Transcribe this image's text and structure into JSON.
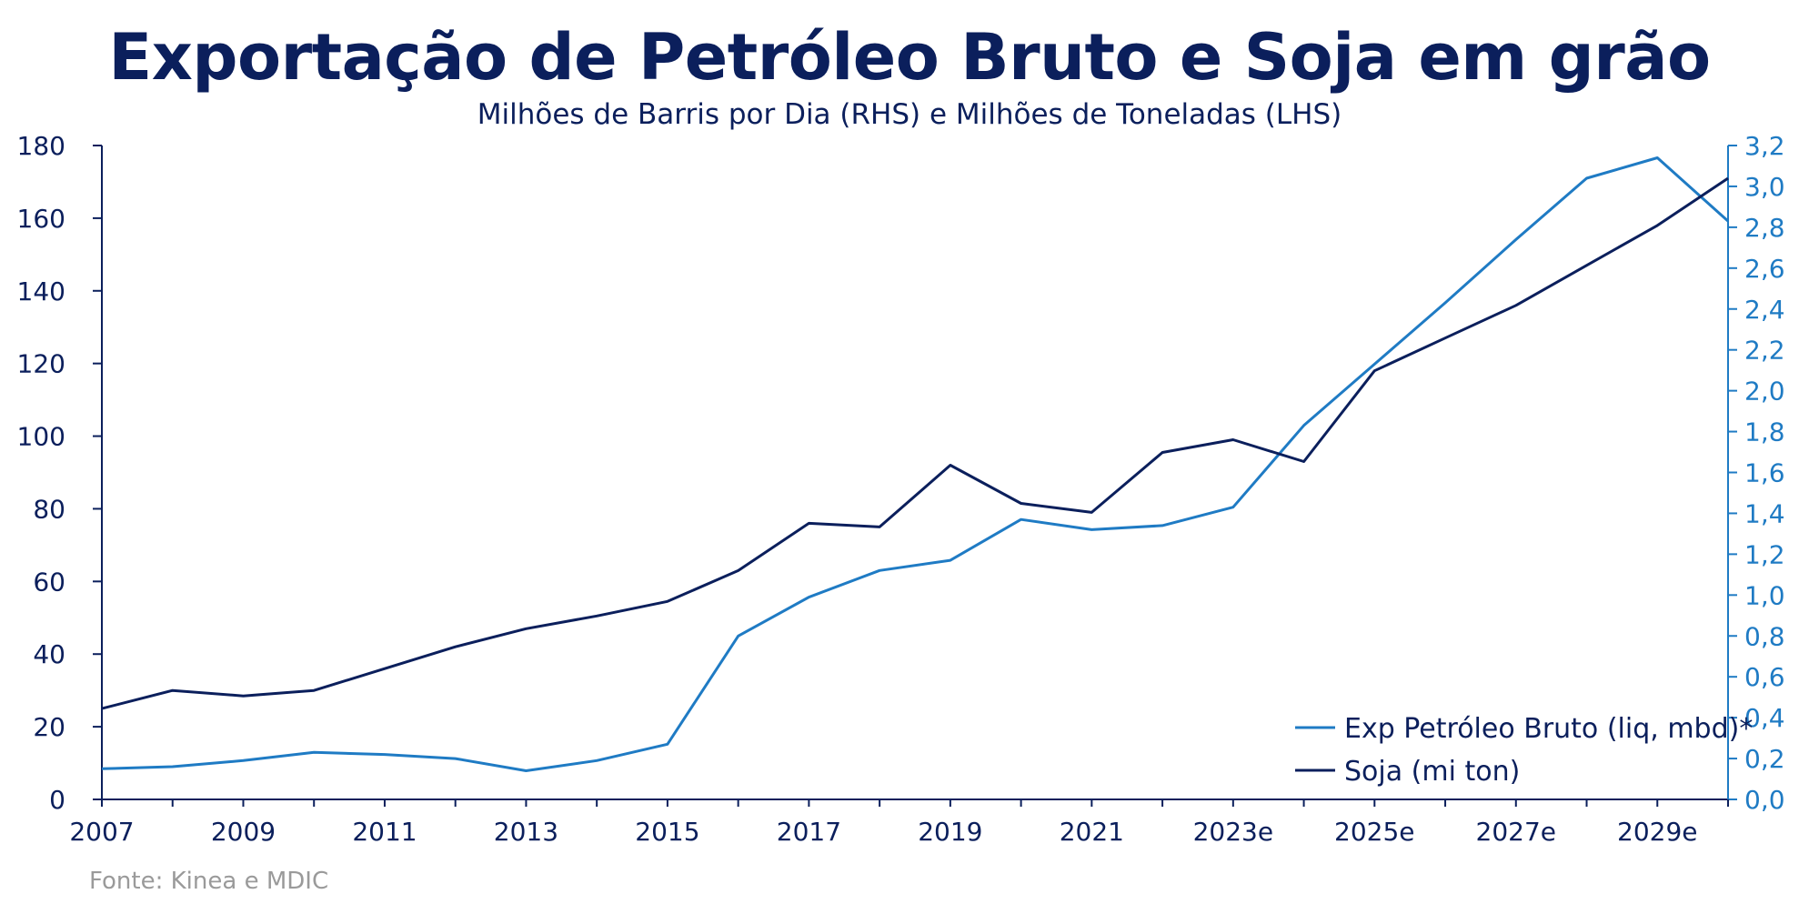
{
  "colors": {
    "title": "#0b1f5c",
    "soja": "#0b1f5c",
    "petroleo": "#1f7bc4",
    "axis_left": "#0b1f5c",
    "axis_right": "#1f7bc4",
    "source": "#9a9a9a"
  },
  "chart_data": {
    "type": "line",
    "title": "Exportação de Petróleo Bruto e Soja em grão",
    "subtitle": "Milhões de Barris por Dia (RHS) e Milhões de Toneladas (LHS)",
    "x": [
      "2007",
      "2008",
      "2009",
      "2010",
      "2011",
      "2012",
      "2013",
      "2014",
      "2015",
      "2016",
      "2017",
      "2018",
      "2019",
      "2020",
      "2021",
      "2022",
      "2023e",
      "2024e",
      "2025e",
      "2026e",
      "2027e",
      "2028e",
      "2029e",
      "2030e"
    ],
    "x_tick_labels": [
      "2007",
      "2009",
      "2011",
      "2013",
      "2015",
      "2017",
      "2019",
      "2021",
      "2023e",
      "2025e",
      "2027e",
      "2029e"
    ],
    "y_left": {
      "range": [
        0,
        180
      ],
      "ticks": [
        "0",
        "20",
        "40",
        "60",
        "80",
        "100",
        "120",
        "140",
        "160",
        "180"
      ]
    },
    "y_right": {
      "range": [
        0,
        3.2
      ],
      "ticks": [
        "0,0",
        "0,2",
        "0,4",
        "0,6",
        "0,8",
        "1,0",
        "1,2",
        "1,4",
        "1,6",
        "1,8",
        "2,0",
        "2,2",
        "2,4",
        "2,6",
        "2,8",
        "3,0",
        "3,2"
      ]
    },
    "series": [
      {
        "name": "Exp Petróleo Bruto (liq, mbd)*",
        "axis": "right",
        "values": [
          0.15,
          0.16,
          0.19,
          0.23,
          0.22,
          0.2,
          0.14,
          0.19,
          0.27,
          0.8,
          0.99,
          1.12,
          1.17,
          1.37,
          1.32,
          1.34,
          1.43,
          1.83,
          2.13,
          2.43,
          2.74,
          3.04,
          3.14,
          2.83
        ]
      },
      {
        "name": "Soja (mi ton)",
        "axis": "left",
        "values": [
          25,
          30,
          28.5,
          30,
          36,
          42,
          47,
          50.5,
          54.5,
          63,
          76,
          75,
          92,
          81.5,
          79,
          95.5,
          99,
          93,
          118,
          127,
          136,
          147,
          158,
          171
        ]
      }
    ],
    "legend_position": "bottom-right",
    "grid": false,
    "source": "Fonte: Kinea e MDIC"
  }
}
